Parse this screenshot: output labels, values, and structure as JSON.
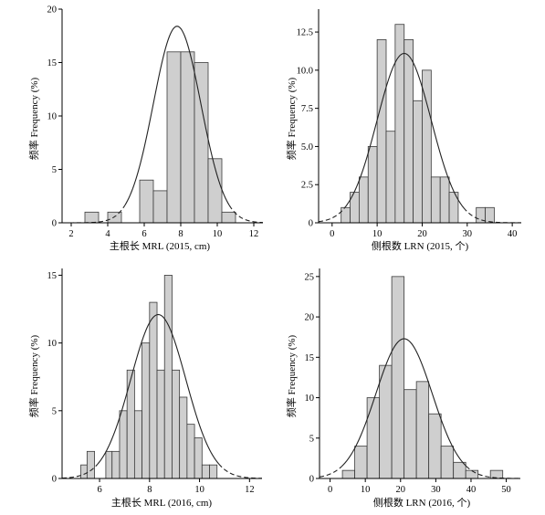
{
  "chart_data": [
    {
      "type": "bar",
      "xlabel": "主根长 MRL (2015, cm)",
      "ylabel": "频率 Frequency (%)",
      "xlim": [
        1.5,
        12.5
      ],
      "ylim": [
        0,
        20
      ],
      "xticks": [
        2,
        4,
        6,
        8,
        10,
        12
      ],
      "yticks": [
        0,
        5,
        10,
        15,
        20
      ],
      "bins": [
        {
          "from": 2.75,
          "to": 3.5,
          "value": 1
        },
        {
          "from": 4.0,
          "to": 4.75,
          "value": 1
        },
        {
          "from": 5.75,
          "to": 6.5,
          "value": 4
        },
        {
          "from": 6.5,
          "to": 7.25,
          "value": 3
        },
        {
          "from": 7.25,
          "to": 8.0,
          "value": 16
        },
        {
          "from": 8.0,
          "to": 8.75,
          "value": 16
        },
        {
          "from": 8.75,
          "to": 9.5,
          "value": 15
        },
        {
          "from": 9.5,
          "to": 10.25,
          "value": 6
        },
        {
          "from": 10.25,
          "to": 11.0,
          "value": 1
        }
      ],
      "curve": {
        "mean": 7.8,
        "sd": 1.3,
        "peak": 18.4
      }
    },
    {
      "type": "bar",
      "xlabel": "侧根数 LRN (2015, 个)",
      "ylabel": "频率 Frequency (%)",
      "xlim": [
        -3,
        42
      ],
      "ylim": [
        0,
        14
      ],
      "xticks": [
        0,
        10,
        20,
        30,
        40
      ],
      "yticks": [
        0,
        2.5,
        5.0,
        7.5,
        10.0,
        12.5
      ],
      "ytick_labels": [
        "0",
        "2.5",
        "5.0",
        "7.5",
        "10.0",
        "12.5"
      ],
      "bins": [
        {
          "from": 2,
          "to": 4,
          "value": 1
        },
        {
          "from": 4,
          "to": 6,
          "value": 2
        },
        {
          "from": 6,
          "to": 8,
          "value": 3
        },
        {
          "from": 8,
          "to": 10,
          "value": 5
        },
        {
          "from": 10,
          "to": 12,
          "value": 12
        },
        {
          "from": 12,
          "to": 14,
          "value": 6
        },
        {
          "from": 14,
          "to": 16,
          "value": 13
        },
        {
          "from": 16,
          "to": 18,
          "value": 12
        },
        {
          "from": 18,
          "to": 20,
          "value": 8
        },
        {
          "from": 20,
          "to": 22,
          "value": 10
        },
        {
          "from": 22,
          "to": 24,
          "value": 3
        },
        {
          "from": 24,
          "to": 26,
          "value": 3
        },
        {
          "from": 26,
          "to": 28,
          "value": 2
        },
        {
          "from": 32,
          "to": 34,
          "value": 1
        },
        {
          "from": 34,
          "to": 36,
          "value": 1
        }
      ],
      "curve": {
        "mean": 16,
        "sd": 6,
        "peak": 11.1
      }
    },
    {
      "type": "bar",
      "xlabel": "主根长 MRL (2016, cm)",
      "ylabel": "频率 Frequency (%)",
      "xlim": [
        4.5,
        12.5
      ],
      "ylim": [
        0,
        15.5
      ],
      "xticks": [
        6,
        8,
        10,
        12
      ],
      "yticks": [
        0,
        5,
        10,
        15
      ],
      "bins": [
        {
          "from": 5.25,
          "to": 5.5,
          "value": 1
        },
        {
          "from": 5.5,
          "to": 5.8,
          "value": 2
        },
        {
          "from": 6.25,
          "to": 6.5,
          "value": 2
        },
        {
          "from": 6.5,
          "to": 6.8,
          "value": 2
        },
        {
          "from": 6.8,
          "to": 7.1,
          "value": 5
        },
        {
          "from": 7.1,
          "to": 7.4,
          "value": 8
        },
        {
          "from": 7.4,
          "to": 7.7,
          "value": 5
        },
        {
          "from": 7.7,
          "to": 8.0,
          "value": 10
        },
        {
          "from": 8.0,
          "to": 8.3,
          "value": 13
        },
        {
          "from": 8.3,
          "to": 8.6,
          "value": 8
        },
        {
          "from": 8.6,
          "to": 8.9,
          "value": 15
        },
        {
          "from": 8.9,
          "to": 9.2,
          "value": 8
        },
        {
          "from": 9.2,
          "to": 9.5,
          "value": 6
        },
        {
          "from": 9.5,
          "to": 9.8,
          "value": 4
        },
        {
          "from": 9.8,
          "to": 10.1,
          "value": 3
        },
        {
          "from": 10.1,
          "to": 10.4,
          "value": 1
        },
        {
          "from": 10.4,
          "to": 10.7,
          "value": 1
        }
      ],
      "curve": {
        "mean": 8.35,
        "sd": 1.1,
        "peak": 12.1
      }
    },
    {
      "type": "bar",
      "xlabel": "侧根数 LRN (2016, 个)",
      "ylabel": "频率 Frequency (%)",
      "xlim": [
        -3,
        54
      ],
      "ylim": [
        0,
        26
      ],
      "xticks": [
        0,
        10,
        20,
        30,
        40,
        50
      ],
      "yticks": [
        0,
        5,
        10,
        15,
        20,
        25
      ],
      "bins": [
        {
          "from": 3.5,
          "to": 7,
          "value": 1
        },
        {
          "from": 7,
          "to": 10.5,
          "value": 4
        },
        {
          "from": 10.5,
          "to": 14,
          "value": 10
        },
        {
          "from": 14,
          "to": 17.5,
          "value": 14
        },
        {
          "from": 17.5,
          "to": 21,
          "value": 25
        },
        {
          "from": 21,
          "to": 24.5,
          "value": 11
        },
        {
          "from": 24.5,
          "to": 28,
          "value": 12
        },
        {
          "from": 28,
          "to": 31.5,
          "value": 8
        },
        {
          "from": 31.5,
          "to": 35,
          "value": 4
        },
        {
          "from": 35,
          "to": 38.5,
          "value": 2
        },
        {
          "from": 38.5,
          "to": 42,
          "value": 1
        },
        {
          "from": 45.5,
          "to": 49,
          "value": 1
        }
      ],
      "curve": {
        "mean": 21,
        "sd": 8,
        "peak": 17.3
      }
    }
  ]
}
